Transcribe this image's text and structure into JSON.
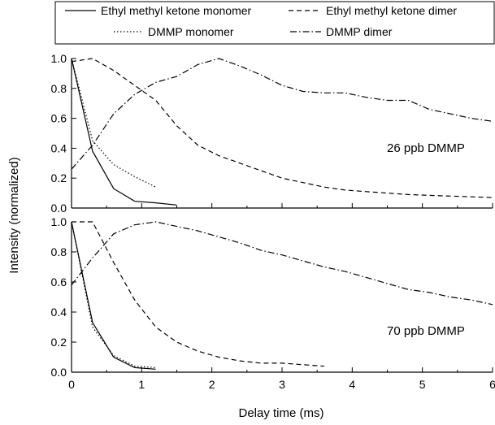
{
  "chart_data": [
    {
      "type": "line",
      "annotation": "26 ppb DMMP",
      "xlim": [
        0,
        6
      ],
      "ylim": [
        0,
        1.0
      ],
      "y_ticks": [
        "0.0",
        "0.2",
        "0.4",
        "0.6",
        "0.8",
        "1.0"
      ],
      "series": [
        {
          "name": "Ethyl methyl ketone monomer",
          "dash": "solid",
          "x": [
            0,
            0.3,
            0.6,
            0.9,
            1.2,
            1.5
          ],
          "y": [
            1.0,
            0.38,
            0.13,
            0.045,
            0.035,
            0.02
          ]
        },
        {
          "name": "DMMP monomer",
          "dash": "dotted",
          "x": [
            0,
            0.3,
            0.6,
            0.9,
            1.2
          ],
          "y": [
            1.0,
            0.45,
            0.29,
            0.21,
            0.14
          ]
        },
        {
          "name": "Ethyl methyl ketone dimer",
          "dash": "dashed",
          "x": [
            0,
            0.3,
            0.6,
            0.9,
            1.2,
            1.5,
            1.8,
            2.1,
            2.4,
            2.7,
            3.0,
            3.3,
            3.6,
            3.9,
            4.2,
            4.5,
            4.8,
            5.1,
            5.4,
            5.7,
            6.0
          ],
          "y": [
            0.98,
            1.0,
            0.92,
            0.82,
            0.72,
            0.55,
            0.42,
            0.35,
            0.3,
            0.25,
            0.2,
            0.17,
            0.14,
            0.12,
            0.11,
            0.1,
            0.09,
            0.085,
            0.08,
            0.075,
            0.07
          ]
        },
        {
          "name": "DMMP dimer",
          "dash": "dashdot",
          "x": [
            0,
            0.3,
            0.6,
            0.9,
            1.2,
            1.5,
            1.8,
            2.1,
            2.4,
            2.7,
            3.0,
            3.3,
            3.6,
            3.9,
            4.2,
            4.5,
            4.8,
            5.1,
            5.4,
            5.7,
            6.0
          ],
          "y": [
            0.26,
            0.42,
            0.63,
            0.76,
            0.84,
            0.88,
            0.96,
            1.0,
            0.95,
            0.89,
            0.82,
            0.78,
            0.77,
            0.77,
            0.74,
            0.72,
            0.72,
            0.66,
            0.63,
            0.6,
            0.58
          ]
        }
      ]
    },
    {
      "type": "line",
      "annotation": "70 ppb DMMP",
      "xlabel": "Delay time (ms)",
      "xlim": [
        0,
        6
      ],
      "ylim": [
        0,
        1.0
      ],
      "x_ticks": [
        "0",
        "1",
        "2",
        "3",
        "4",
        "5",
        "6"
      ],
      "y_ticks": [
        "0.0",
        "0.2",
        "0.4",
        "0.6",
        "0.8",
        "1.0"
      ],
      "series": [
        {
          "name": "Ethyl methyl ketone monomer",
          "dash": "solid",
          "x": [
            0,
            0.3,
            0.6,
            0.9,
            1.2
          ],
          "y": [
            1.0,
            0.33,
            0.1,
            0.03,
            0.02
          ]
        },
        {
          "name": "DMMP monomer",
          "dash": "dotted",
          "x": [
            0,
            0.3,
            0.6,
            0.9,
            1.2
          ],
          "y": [
            1.0,
            0.3,
            0.11,
            0.04,
            0.03
          ]
        },
        {
          "name": "Ethyl methyl ketone dimer",
          "dash": "dashed",
          "x": [
            0,
            0.3,
            0.6,
            0.9,
            1.2,
            1.5,
            1.8,
            2.1,
            2.4,
            2.7,
            3.0,
            3.3,
            3.6
          ],
          "y": [
            1.0,
            1.0,
            0.73,
            0.48,
            0.3,
            0.2,
            0.14,
            0.1,
            0.075,
            0.06,
            0.06,
            0.05,
            0.04
          ]
        },
        {
          "name": "DMMP dimer",
          "dash": "dashdot",
          "x": [
            0,
            0.3,
            0.6,
            0.9,
            1.2,
            1.5,
            1.8,
            2.1,
            2.4,
            2.7,
            3.0,
            3.3,
            3.6,
            3.9,
            4.2,
            4.5,
            4.8,
            5.1,
            5.4,
            5.7,
            6.0
          ],
          "y": [
            0.58,
            0.76,
            0.92,
            0.98,
            1.0,
            0.97,
            0.94,
            0.9,
            0.86,
            0.81,
            0.78,
            0.74,
            0.7,
            0.67,
            0.63,
            0.59,
            0.55,
            0.53,
            0.5,
            0.48,
            0.45
          ]
        }
      ]
    }
  ],
  "shared": {
    "ylabel": "Intensity (normalized)",
    "legend_placement": "top",
    "grid": false
  },
  "legend": [
    {
      "name": "Ethyl methyl ketone monomer",
      "dash": "solid"
    },
    {
      "name": "Ethyl methyl ketone dimer",
      "dash": "dashed"
    },
    {
      "name": "DMMP monomer",
      "dash": "dotted"
    },
    {
      "name": "DMMP dimer",
      "dash": "dashdot"
    }
  ]
}
